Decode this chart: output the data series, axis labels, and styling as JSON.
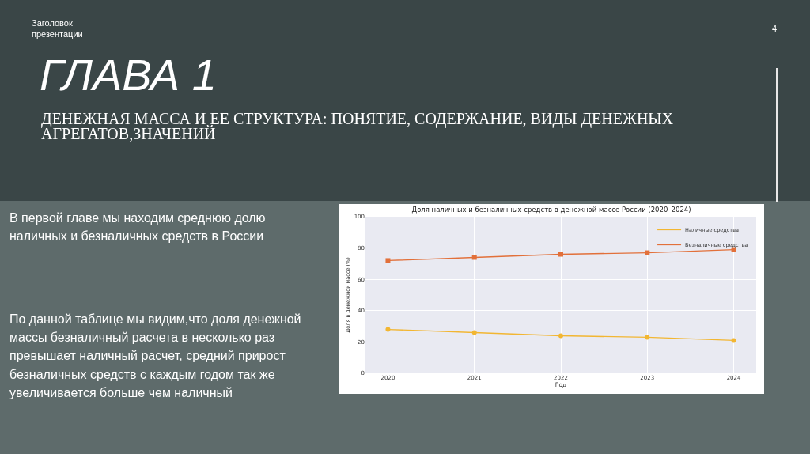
{
  "chart_data": {
    "type": "line",
    "title": "Доля наличных и безналичных средств в денежной массе России (2020–2024)",
    "xlabel": "Год",
    "ylabel": "Доля в денежной массе (%)",
    "categories": [
      "2020",
      "2021",
      "2022",
      "2023",
      "2024"
    ],
    "series": [
      {
        "name": "Наличные средства",
        "color": "#f2b632",
        "values": [
          28,
          26,
          24,
          23,
          21
        ]
      },
      {
        "name": "Безналичные средства",
        "color": "#e2703a",
        "values": [
          72,
          74,
          76,
          77,
          79
        ],
        "marker": "square"
      }
    ],
    "ylim": [
      0,
      100
    ],
    "yticks": [
      0,
      20,
      40,
      60,
      80,
      100
    ],
    "grid": true,
    "legend": "top right",
    "line_style": "solid",
    "marker": "circle",
    "annotations": [
      "Заголовок\nпрезентации",
      "4",
      "ГЛАВА 1",
      "ДЕНЕЖНАЯ МАССА И ЕЕ СТРУКТУРА: ПОНЯТИЕ, СОДЕРЖАНИЕ, ВИДЫ ДЕНЕЖНЫХ АГРЕГАТОВ,ЗНАЧЕНИЙ",
      "В первой главе мы находим среднюю долю наличных и безналичных средств в России",
      "По данной таблице мы видим,что доля денежной массы безналичный расчета в несколько раз превышает наличный расчет, средний прирост безналичных средств с каждым годом так же увеличивается больше чем наличный"
    ]
  }
}
